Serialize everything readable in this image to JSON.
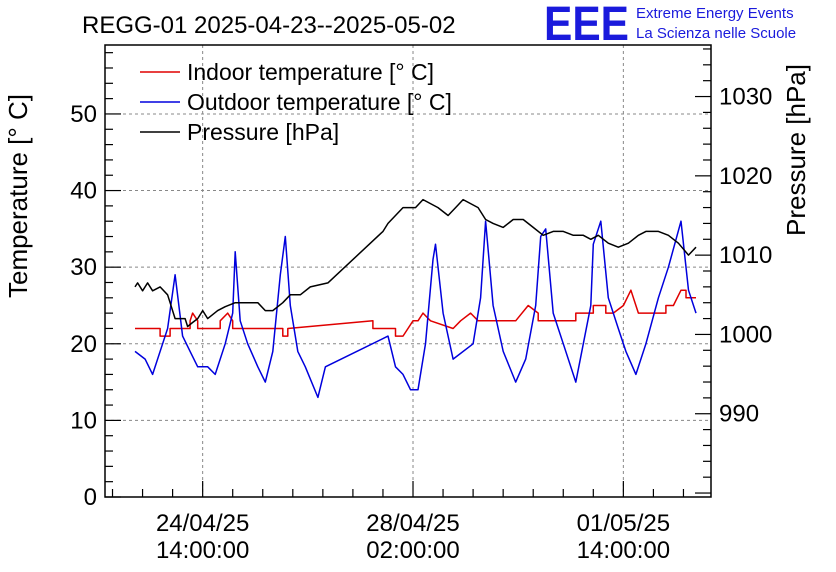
{
  "chart_data": {
    "type": "line",
    "title": "REGG-01 2025-04-23--2025-05-02",
    "ylabel": "Temperature [° C]",
    "y2label": "Pressure [hPa]",
    "xlabel": "",
    "ylim": [
      0,
      59
    ],
    "y2lim": [
      979.5,
      1036.5
    ],
    "xlim": [
      "2025-04-22 23:00",
      "2025-05-03 01:00"
    ],
    "grid": true,
    "legend_position": "top-left",
    "x_ticks": [
      {
        "date": "2025-04-24 14:00",
        "line1": "24/04/25",
        "line2": "14:00:00"
      },
      {
        "date": "2025-04-28 02:00",
        "line1": "28/04/25",
        "line2": "02:00:00"
      },
      {
        "date": "2025-05-01 14:00",
        "line1": "01/05/25",
        "line2": "14:00:00"
      }
    ],
    "y_ticks": [
      0,
      10,
      20,
      30,
      40,
      50
    ],
    "y2_ticks": [
      990,
      1000,
      1010,
      1020,
      1030
    ],
    "series": [
      {
        "name": "Indoor temperature [° C]",
        "axis": "left",
        "color": "#e00000",
        "points": [
          [
            "2025-04-23 11:00",
            22
          ],
          [
            "2025-04-23 21:00",
            22
          ],
          [
            "2025-04-23 21:00",
            21
          ],
          [
            "2025-04-24 01:00",
            21
          ],
          [
            "2025-04-24 01:00",
            22
          ],
          [
            "2025-04-24 09:00",
            22
          ],
          [
            "2025-04-24 09:00",
            23
          ],
          [
            "2025-04-24 10:00",
            24
          ],
          [
            "2025-04-24 12:00",
            23
          ],
          [
            "2025-04-24 12:00",
            22
          ],
          [
            "2025-04-24 21:00",
            22
          ],
          [
            "2025-04-24 21:00",
            23
          ],
          [
            "2025-04-25 00:00",
            24
          ],
          [
            "2025-04-25 02:00",
            23
          ],
          [
            "2025-04-25 02:00",
            22
          ],
          [
            "2025-04-25 22:00",
            22
          ],
          [
            "2025-04-25 22:00",
            21
          ],
          [
            "2025-04-26 00:00",
            21
          ],
          [
            "2025-04-26 00:00",
            22
          ],
          [
            "2025-04-27 10:00",
            23
          ],
          [
            "2025-04-27 10:00",
            22
          ],
          [
            "2025-04-27 19:00",
            22
          ],
          [
            "2025-04-27 19:00",
            21
          ],
          [
            "2025-04-27 22:00",
            21
          ],
          [
            "2025-04-28 02:00",
            23
          ],
          [
            "2025-04-28 04:00",
            23
          ],
          [
            "2025-04-28 06:00",
            24
          ],
          [
            "2025-04-28 09:00",
            23
          ],
          [
            "2025-04-28 18:00",
            22
          ],
          [
            "2025-04-28 21:00",
            23
          ],
          [
            "2025-04-29 01:00",
            24
          ],
          [
            "2025-04-29 04:00",
            23
          ],
          [
            "2025-04-29 19:00",
            23
          ],
          [
            "2025-04-30 00:00",
            25
          ],
          [
            "2025-04-30 04:00",
            24
          ],
          [
            "2025-04-30 04:00",
            23
          ],
          [
            "2025-04-30 19:00",
            23
          ],
          [
            "2025-04-30 19:00",
            24
          ],
          [
            "2025-04-30 22:00",
            24
          ],
          [
            "2025-05-01 02:00",
            24
          ],
          [
            "2025-05-01 02:00",
            25
          ],
          [
            "2025-05-01 07:00",
            25
          ],
          [
            "2025-05-01 07:00",
            24
          ],
          [
            "2025-05-01 10:00",
            24
          ],
          [
            "2025-05-01 14:00",
            25
          ],
          [
            "2025-05-01 17:00",
            27
          ],
          [
            "2025-05-01 19:00",
            25
          ],
          [
            "2025-05-01 20:00",
            24
          ],
          [
            "2025-05-02 07:00",
            24
          ],
          [
            "2025-05-02 07:00",
            25
          ],
          [
            "2025-05-02 10:00",
            25
          ],
          [
            "2025-05-02 13:00",
            27
          ],
          [
            "2025-05-02 15:00",
            27
          ],
          [
            "2025-05-02 15:00",
            26
          ],
          [
            "2025-05-02 19:00",
            26
          ]
        ]
      },
      {
        "name": "Outdoor temperature [° C]",
        "axis": "left",
        "color": "#0000dd",
        "points": [
          [
            "2025-04-23 11:00",
            19
          ],
          [
            "2025-04-23 15:00",
            18
          ],
          [
            "2025-04-23 18:00",
            16
          ],
          [
            "2025-04-23 22:00",
            20
          ],
          [
            "2025-04-24 00:00",
            22
          ],
          [
            "2025-04-24 03:00",
            29
          ],
          [
            "2025-04-24 06:00",
            21
          ],
          [
            "2025-04-24 09:00",
            19
          ],
          [
            "2025-04-24 12:00",
            17
          ],
          [
            "2025-04-24 16:00",
            17
          ],
          [
            "2025-04-24 19:00",
            16
          ],
          [
            "2025-04-24 23:00",
            20
          ],
          [
            "2025-04-25 02:00",
            24
          ],
          [
            "2025-04-25 03:00",
            32
          ],
          [
            "2025-04-25 05:00",
            23
          ],
          [
            "2025-04-25 08:00",
            20
          ],
          [
            "2025-04-25 12:00",
            17
          ],
          [
            "2025-04-25 15:00",
            15
          ],
          [
            "2025-04-25 18:00",
            19
          ],
          [
            "2025-04-25 21:00",
            29
          ],
          [
            "2025-04-25 23:00",
            34
          ],
          [
            "2025-04-26 01:00",
            25
          ],
          [
            "2025-04-26 04:00",
            19
          ],
          [
            "2025-04-26 07:00",
            17
          ],
          [
            "2025-04-26 12:00",
            13
          ],
          [
            "2025-04-26 15:00",
            17
          ],
          [
            "2025-04-27 16:00",
            21
          ],
          [
            "2025-04-27 19:00",
            17
          ],
          [
            "2025-04-27 22:00",
            16
          ],
          [
            "2025-04-28 01:00",
            14
          ],
          [
            "2025-04-28 04:00",
            14
          ],
          [
            "2025-04-28 07:00",
            20
          ],
          [
            "2025-04-28 10:00",
            31
          ],
          [
            "2025-04-28 11:00",
            33
          ],
          [
            "2025-04-28 14:00",
            24
          ],
          [
            "2025-04-28 18:00",
            18
          ],
          [
            "2025-04-29 02:00",
            20
          ],
          [
            "2025-04-29 05:00",
            26
          ],
          [
            "2025-04-29 07:00",
            36
          ],
          [
            "2025-04-29 10:00",
            25
          ],
          [
            "2025-04-29 14:00",
            19
          ],
          [
            "2025-04-29 19:00",
            15
          ],
          [
            "2025-04-29 23:00",
            18
          ],
          [
            "2025-04-30 03:00",
            25
          ],
          [
            "2025-04-30 05:00",
            34
          ],
          [
            "2025-04-30 07:00",
            35
          ],
          [
            "2025-04-30 10:00",
            24
          ],
          [
            "2025-04-30 14:00",
            20
          ],
          [
            "2025-04-30 19:00",
            15
          ],
          [
            "2025-04-30 22:00",
            20
          ],
          [
            "2025-05-01 01:00",
            25
          ],
          [
            "2025-05-01 02:00",
            33
          ],
          [
            "2025-05-01 05:00",
            36
          ],
          [
            "2025-05-01 08:00",
            26
          ],
          [
            "2025-05-01 12:00",
            22
          ],
          [
            "2025-05-01 15:00",
            19
          ],
          [
            "2025-05-01 19:00",
            16
          ],
          [
            "2025-05-01 23:00",
            20
          ],
          [
            "2025-05-02 04:00",
            26
          ],
          [
            "2025-05-02 08:00",
            30
          ],
          [
            "2025-05-02 13:00",
            36
          ],
          [
            "2025-05-02 16:00",
            27
          ],
          [
            "2025-05-02 19:00",
            24
          ]
        ]
      },
      {
        "name": "Pressure [hPa]",
        "axis": "right",
        "color": "#000000",
        "points": [
          [
            "2025-04-23 11:00",
            1006
          ],
          [
            "2025-04-23 12:00",
            1006.5
          ],
          [
            "2025-04-23 14:00",
            1005.5
          ],
          [
            "2025-04-23 16:00",
            1006.5
          ],
          [
            "2025-04-23 18:00",
            1005.5
          ],
          [
            "2025-04-23 21:00",
            1006
          ],
          [
            "2025-04-24 00:00",
            1005
          ],
          [
            "2025-04-24 01:00",
            1004
          ],
          [
            "2025-04-24 03:00",
            1002
          ],
          [
            "2025-04-24 07:00",
            1002
          ],
          [
            "2025-04-24 08:00",
            1001
          ],
          [
            "2025-04-24 10:00",
            1001.5
          ],
          [
            "2025-04-24 12:00",
            1002
          ],
          [
            "2025-04-24 14:00",
            1003
          ],
          [
            "2025-04-24 16:00",
            1002
          ],
          [
            "2025-04-24 20:00",
            1003
          ],
          [
            "2025-04-24 23:00",
            1003.5
          ],
          [
            "2025-04-25 03:00",
            1004
          ],
          [
            "2025-04-25 07:00",
            1004
          ],
          [
            "2025-04-25 12:00",
            1004
          ],
          [
            "2025-04-25 15:00",
            1003
          ],
          [
            "2025-04-25 18:00",
            1003
          ],
          [
            "2025-04-25 22:00",
            1004
          ],
          [
            "2025-04-26 01:00",
            1005
          ],
          [
            "2025-04-26 05:00",
            1005
          ],
          [
            "2025-04-26 09:00",
            1006
          ],
          [
            "2025-04-26 16:00",
            1006.5
          ],
          [
            "2025-04-27 14:00",
            1013
          ],
          [
            "2025-04-27 16:00",
            1014
          ],
          [
            "2025-04-27 19:00",
            1015
          ],
          [
            "2025-04-27 22:00",
            1016
          ],
          [
            "2025-04-28 03:00",
            1016
          ],
          [
            "2025-04-28 06:00",
            1017
          ],
          [
            "2025-04-28 09:00",
            1016.5
          ],
          [
            "2025-04-28 12:00",
            1016
          ],
          [
            "2025-04-28 16:00",
            1015
          ],
          [
            "2025-04-28 19:00",
            1016
          ],
          [
            "2025-04-28 22:00",
            1017
          ],
          [
            "2025-04-29 04:00",
            1016
          ],
          [
            "2025-04-29 07:00",
            1014.5
          ],
          [
            "2025-04-29 10:00",
            1014
          ],
          [
            "2025-04-29 14:00",
            1013.5
          ],
          [
            "2025-04-29 18:00",
            1014.5
          ],
          [
            "2025-04-29 22:00",
            1014.5
          ],
          [
            "2025-04-30 02:00",
            1013.5
          ],
          [
            "2025-04-30 06:00",
            1012.5
          ],
          [
            "2025-04-30 10:00",
            1013
          ],
          [
            "2025-04-30 14:00",
            1013
          ],
          [
            "2025-04-30 18:00",
            1012.5
          ],
          [
            "2025-04-30 22:00",
            1012.5
          ],
          [
            "2025-05-01 01:00",
            1012
          ],
          [
            "2025-05-01 04:00",
            1012.5
          ],
          [
            "2025-05-01 08:00",
            1011.5
          ],
          [
            "2025-05-01 12:00",
            1011
          ],
          [
            "2025-05-01 16:00",
            1011.5
          ],
          [
            "2025-05-01 20:00",
            1012.5
          ],
          [
            "2025-05-01 23:00",
            1013
          ],
          [
            "2025-05-02 04:00",
            1013
          ],
          [
            "2025-05-02 08:00",
            1012.5
          ],
          [
            "2025-05-02 12:00",
            1011.5
          ],
          [
            "2025-05-02 16:00",
            1010
          ],
          [
            "2025-05-02 19:00",
            1011
          ]
        ]
      }
    ]
  },
  "logo": {
    "mark": "EEE",
    "line1": "Extreme Energy Events",
    "line2": "La Scienza nelle Scuole",
    "color": "#1a1adc"
  }
}
